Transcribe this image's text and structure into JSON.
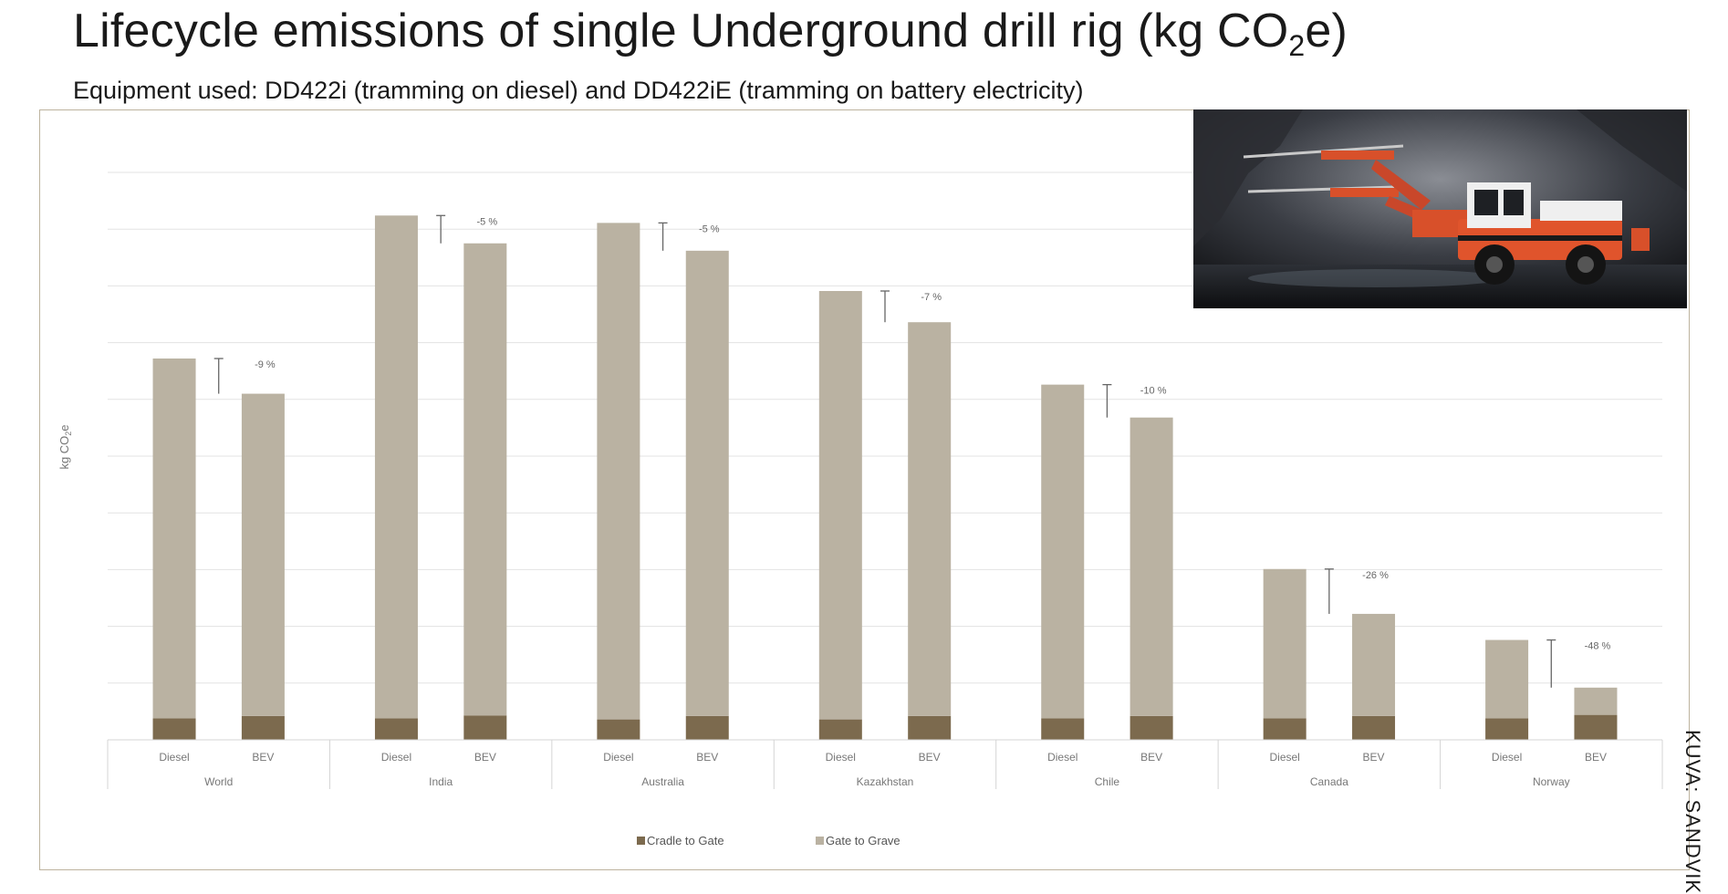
{
  "title": {
    "main": "Lifecycle emissions of single Underground drill rig (kg CO",
    "sub": "2",
    "suffix": "e)"
  },
  "subtitle": "Equipment used: DD422i (tramming on diesel) and DD422iE (tramming on battery electricity)",
  "credit": "KUVA: SANDVIK",
  "chart_data": {
    "type": "bar",
    "stacked": true,
    "ylabel": "kg CO2e",
    "ylim": [
      0,
      10
    ],
    "y_tick_labels_shown": false,
    "grid": true,
    "legend": "bottom-center",
    "groups": [
      "World",
      "India",
      "Australia",
      "Kazakhstan",
      "Chile",
      "Canada",
      "Norway"
    ],
    "bar_labels": [
      "Diesel",
      "BEV"
    ],
    "series": [
      {
        "name": "Cradle to Gate",
        "color": "#7c6a4e",
        "values": [
          [
            0.38,
            0.42
          ],
          [
            0.38,
            0.43
          ],
          [
            0.36,
            0.42
          ],
          [
            0.36,
            0.42
          ],
          [
            0.38,
            0.42
          ],
          [
            0.38,
            0.42
          ],
          [
            0.38,
            0.44
          ]
        ]
      },
      {
        "name": "Gate to Grave",
        "color": "#bab2a2",
        "values": [
          [
            6.34,
            5.68
          ],
          [
            8.86,
            8.32
          ],
          [
            8.75,
            8.2
          ],
          [
            7.55,
            6.94
          ],
          [
            5.88,
            5.26
          ],
          [
            2.63,
            1.8
          ],
          [
            1.38,
            0.48
          ]
        ]
      }
    ],
    "annotations": [
      "-9 %",
      "-5 %",
      "-5 %",
      "-7 %",
      "-10 %",
      "-26 %",
      "-48 %"
    ]
  }
}
